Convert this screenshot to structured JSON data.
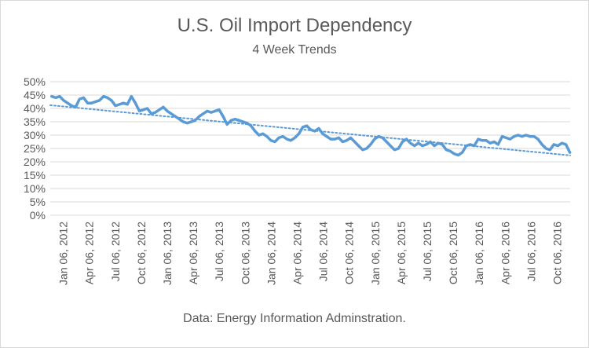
{
  "chart_data": {
    "type": "line",
    "title": "U.S. Oil Import Dependency",
    "subtitle": "4 Week Trends",
    "source": "Data: Energy Information Adminstration.",
    "x_ticks": [
      "Jan 06, 2012",
      "Apr 06, 2012",
      "Jul 06, 2012",
      "Oct 06, 2012",
      "Jan 06, 2013",
      "Apr 06, 2013",
      "Jul 06, 2013",
      "Oct 06, 2013",
      "Jan 06, 2014",
      "Apr 06, 2014",
      "Jul 06, 2014",
      "Oct 06, 2014",
      "Jan 06, 2015",
      "Apr 06, 2015",
      "Jul 06, 2015",
      "Oct 06, 2015",
      "Jan 06, 2016",
      "Apr 06, 2016",
      "Jul 06, 2016",
      "Oct 06, 2016"
    ],
    "y_ticks": [
      "0%",
      "5%",
      "10%",
      "15%",
      "20%",
      "25%",
      "30%",
      "35%",
      "40%",
      "45%",
      "50%"
    ],
    "ylim": [
      0,
      50
    ],
    "xlim": [
      "2012-01-01",
      "2016-12-31"
    ],
    "grid": true,
    "series": [
      {
        "color": "#5b9bd5",
        "x": [
          "2012-01-06",
          "2012-01-20",
          "2012-02-03",
          "2012-02-17",
          "2012-03-02",
          "2012-03-16",
          "2012-03-30",
          "2012-04-13",
          "2012-04-27",
          "2012-05-11",
          "2012-05-25",
          "2012-06-08",
          "2012-06-22",
          "2012-07-06",
          "2012-07-20",
          "2012-08-03",
          "2012-08-17",
          "2012-08-31",
          "2012-09-14",
          "2012-09-28",
          "2012-10-12",
          "2012-10-26",
          "2012-11-09",
          "2012-11-23",
          "2012-12-07",
          "2012-12-21",
          "2013-01-04",
          "2013-01-18",
          "2013-02-01",
          "2013-02-15",
          "2013-03-01",
          "2013-03-15",
          "2013-03-29",
          "2013-04-12",
          "2013-04-26",
          "2013-05-10",
          "2013-05-24",
          "2013-06-07",
          "2013-06-21",
          "2013-07-05",
          "2013-07-19",
          "2013-08-02",
          "2013-08-16",
          "2013-08-30",
          "2013-09-13",
          "2013-09-27",
          "2013-10-11",
          "2013-10-25",
          "2013-11-08",
          "2013-11-22",
          "2013-12-06",
          "2013-12-20",
          "2014-01-03",
          "2014-01-17",
          "2014-01-31",
          "2014-02-14",
          "2014-02-28",
          "2014-03-14",
          "2014-03-28",
          "2014-04-11",
          "2014-04-25",
          "2014-05-09",
          "2014-05-23",
          "2014-06-06",
          "2014-06-20",
          "2014-07-04",
          "2014-07-18",
          "2014-08-01",
          "2014-08-15",
          "2014-08-29",
          "2014-09-12",
          "2014-09-26",
          "2014-10-10",
          "2014-10-24",
          "2014-11-07",
          "2014-11-21",
          "2014-12-05",
          "2014-12-19",
          "2015-01-02",
          "2015-01-16",
          "2015-01-30",
          "2015-02-13",
          "2015-02-27",
          "2015-03-13",
          "2015-03-27",
          "2015-04-10",
          "2015-04-24",
          "2015-05-08",
          "2015-05-22",
          "2015-06-05",
          "2015-06-19",
          "2015-07-03",
          "2015-07-17",
          "2015-07-31",
          "2015-08-14",
          "2015-08-28",
          "2015-09-11",
          "2015-09-25",
          "2015-10-09",
          "2015-10-23",
          "2015-11-06",
          "2015-11-20",
          "2015-12-04",
          "2015-12-18",
          "2016-01-01",
          "2016-01-15",
          "2016-01-29",
          "2016-02-12",
          "2016-02-26",
          "2016-03-11",
          "2016-03-25",
          "2016-04-08",
          "2016-04-22",
          "2016-05-06",
          "2016-05-20",
          "2016-06-03",
          "2016-06-17",
          "2016-07-01",
          "2016-07-15",
          "2016-07-29",
          "2016-08-12",
          "2016-08-26",
          "2016-09-09",
          "2016-09-23",
          "2016-10-07",
          "2016-10-21",
          "2016-11-04",
          "2016-11-18",
          "2016-12-02",
          "2016-12-16",
          "2016-12-30"
        ],
        "y": [
          44.5,
          44.0,
          44.5,
          43.0,
          42.0,
          41.0,
          40.5,
          43.5,
          44.0,
          42.0,
          42.0,
          42.5,
          43.0,
          44.5,
          44.0,
          43.0,
          41.0,
          41.5,
          42.0,
          41.5,
          44.5,
          42.0,
          39.0,
          39.5,
          40.0,
          38.0,
          38.5,
          39.5,
          40.5,
          39.0,
          38.0,
          37.0,
          36.0,
          35.0,
          34.5,
          35.0,
          35.5,
          37.0,
          38.0,
          39.0,
          38.5,
          39.0,
          39.5,
          37.0,
          34.0,
          35.5,
          36.0,
          35.5,
          35.0,
          34.5,
          33.5,
          31.5,
          30.0,
          30.5,
          29.5,
          28.0,
          27.5,
          29.0,
          29.5,
          28.5,
          28.0,
          29.0,
          30.5,
          33.0,
          33.5,
          32.0,
          31.5,
          32.5,
          30.5,
          29.5,
          28.5,
          28.5,
          29.0,
          27.5,
          28.0,
          29.0,
          27.5,
          26.0,
          24.5,
          25.0,
          26.5,
          28.5,
          29.5,
          29.0,
          27.5,
          26.0,
          24.5,
          25.0,
          27.5,
          28.5,
          27.0,
          26.0,
          27.0,
          26.0,
          26.5,
          27.5,
          26.0,
          27.0,
          26.5,
          24.5,
          24.0,
          23.0,
          22.5,
          23.5,
          26.0,
          26.5,
          26.0,
          28.5,
          28.0,
          28.0,
          27.0,
          27.5,
          26.5,
          29.5,
          29.0,
          28.5,
          29.5,
          30.0,
          29.5,
          30.0,
          29.5,
          29.5,
          28.5,
          26.5,
          25.0,
          24.5,
          26.5,
          26.0,
          27.0,
          26.5,
          23.5
        ]
      }
    ],
    "trendline": {
      "style": "dotted linear",
      "color": "#5b9bd5",
      "start": [
        "2012-01-01",
        41.2
      ],
      "end": [
        "2016-12-31",
        22.4
      ]
    }
  }
}
